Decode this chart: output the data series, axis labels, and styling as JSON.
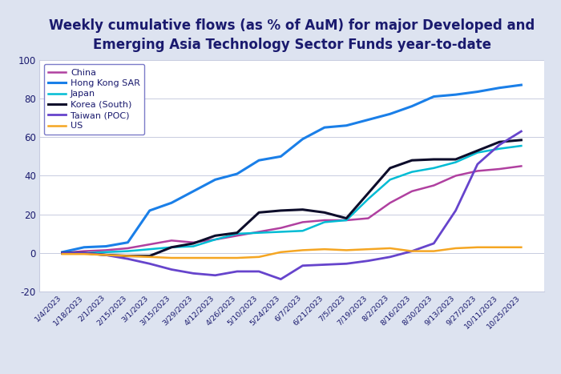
{
  "title": "Weekly cumulative flows (as % of AuM) for major Developed and\nEmerging Asia Technology Sector Funds year-to-date",
  "background_color": "#dde3f0",
  "plot_background": "#ffffff",
  "title_color": "#1a1a6e",
  "title_fontsize": 12.0,
  "tick_label_color": "#1a1a6e",
  "legend_border_color": "#7b7bc8",
  "ylim": [
    -20,
    100
  ],
  "yticks": [
    -20,
    0,
    20,
    40,
    60,
    80,
    100
  ],
  "x_labels": [
    "1/4/2023",
    "1/18/2023",
    "2/1/2023",
    "2/15/2023",
    "3/1/2023",
    "3/15/2023",
    "3/29/2023",
    "4/12/2023",
    "4/26/2023",
    "5/10/2023",
    "5/24/2023",
    "6/7/2023",
    "6/21/2023",
    "7/5/2023",
    "7/19/2023",
    "8/2/2023",
    "8/16/2023",
    "8/30/2023",
    "9/13/2023",
    "9/27/2023",
    "10/11/2023",
    "10/25/2023"
  ],
  "series": [
    {
      "label": "China",
      "color": "#b040a0",
      "linewidth": 1.8,
      "values": [
        0.0,
        1.0,
        1.5,
        2.5,
        4.5,
        6.5,
        5.5,
        7.0,
        9.0,
        11.0,
        13.0,
        16.0,
        17.0,
        17.0,
        18.0,
        26.0,
        32.0,
        35.0,
        40.0,
        42.5,
        43.5,
        45.0
      ]
    },
    {
      "label": "Hong Kong SAR",
      "color": "#1a7fe8",
      "linewidth": 2.2,
      "values": [
        0.5,
        3.0,
        3.5,
        5.5,
        22.0,
        26.0,
        32.0,
        38.0,
        41.0,
        48.0,
        50.0,
        59.0,
        65.0,
        66.0,
        69.0,
        72.0,
        76.0,
        81.0,
        82.0,
        83.5,
        85.5,
        87.0
      ]
    },
    {
      "label": "Japan",
      "color": "#00bcd4",
      "linewidth": 1.8,
      "values": [
        0.0,
        0.0,
        0.5,
        1.0,
        2.0,
        3.0,
        3.5,
        7.0,
        10.0,
        10.5,
        11.0,
        11.5,
        16.0,
        17.0,
        28.0,
        38.0,
        42.0,
        44.0,
        47.0,
        52.0,
        54.0,
        55.5
      ]
    },
    {
      "label": "Korea (South)",
      "color": "#0d0d2b",
      "linewidth": 2.2,
      "values": [
        0.0,
        0.0,
        -1.0,
        -1.5,
        -1.5,
        3.0,
        5.0,
        9.0,
        10.5,
        21.0,
        22.0,
        22.5,
        21.0,
        18.0,
        31.0,
        44.0,
        48.0,
        48.5,
        48.5,
        53.0,
        57.5,
        58.5
      ]
    },
    {
      "label": "Taiwan (POC)",
      "color": "#6644cc",
      "linewidth": 2.0,
      "values": [
        0.0,
        0.0,
        -1.0,
        -3.0,
        -5.5,
        -8.5,
        -10.5,
        -11.5,
        -9.5,
        -9.5,
        -13.5,
        -6.5,
        -6.0,
        -5.5,
        -4.0,
        -2.0,
        1.0,
        5.0,
        22.0,
        46.0,
        56.0,
        63.0
      ]
    },
    {
      "label": "US",
      "color": "#f5a623",
      "linewidth": 1.8,
      "values": [
        -0.5,
        -0.5,
        -1.0,
        -1.5,
        -2.0,
        -2.5,
        -2.5,
        -2.5,
        -2.5,
        -2.0,
        0.5,
        1.5,
        2.0,
        1.5,
        2.0,
        2.5,
        1.0,
        1.0,
        2.5,
        3.0,
        3.0,
        3.0
      ]
    }
  ]
}
